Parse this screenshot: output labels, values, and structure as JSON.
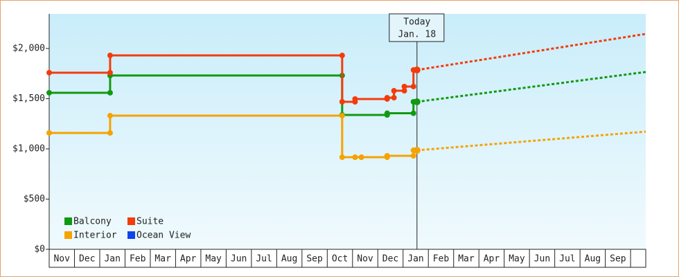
{
  "chart_data": {
    "type": "step-line",
    "xlim": [
      0,
      23.6
    ],
    "xticks": [
      {
        "value": 0,
        "label": "Nov"
      },
      {
        "value": 1,
        "label": "Dec"
      },
      {
        "value": 2,
        "label": "Jan"
      },
      {
        "value": 3,
        "label": "Feb"
      },
      {
        "value": 4,
        "label": "Mar"
      },
      {
        "value": 5,
        "label": "Apr"
      },
      {
        "value": 6,
        "label": "May"
      },
      {
        "value": 7,
        "label": "Jun"
      },
      {
        "value": 8,
        "label": "Jul"
      },
      {
        "value": 9,
        "label": "Aug"
      },
      {
        "value": 10,
        "label": "Sep"
      },
      {
        "value": 11,
        "label": "Oct"
      },
      {
        "value": 12,
        "label": "Nov"
      },
      {
        "value": 13,
        "label": "Dec"
      },
      {
        "value": 14,
        "label": "Jan"
      },
      {
        "value": 15,
        "label": "Feb"
      },
      {
        "value": 16,
        "label": "Mar"
      },
      {
        "value": 17,
        "label": "Apr"
      },
      {
        "value": 18,
        "label": "May"
      },
      {
        "value": 19,
        "label": "Jun"
      },
      {
        "value": 20,
        "label": "Jul"
      },
      {
        "value": 21,
        "label": "Aug"
      },
      {
        "value": 22,
        "label": "Sep"
      }
    ],
    "ylim": [
      0,
      2345
    ],
    "yticks": [
      {
        "value": 0,
        "label": "$0"
      },
      {
        "value": 500,
        "label": "$500"
      },
      {
        "value": 1000,
        "label": "$1,000"
      },
      {
        "value": 1500,
        "label": "$1,500"
      },
      {
        "value": 2000,
        "label": "$2,000"
      }
    ],
    "annotation": {
      "x": 14.55,
      "lines": [
        "Today",
        "Jan. 18"
      ]
    },
    "series": [
      {
        "name": "Balcony",
        "color": "#119911",
        "x": [
          0,
          2.41,
          11.59,
          13.37,
          14.41
        ],
        "values": [
          1559,
          1731,
          1338,
          1355,
          1469
        ],
        "projection": {
          "x": [
            14.55,
            23.6
          ],
          "values": [
            1469,
            1766
          ]
        }
      },
      {
        "name": "Suite",
        "color": "#f43b0c",
        "x": [
          0,
          2.41,
          11.59,
          12.1,
          13.37,
          13.64,
          14.05,
          14.41
        ],
        "values": [
          1759,
          1931,
          1469,
          1497,
          1510,
          1579,
          1621,
          1786
        ],
        "projection": {
          "x": [
            14.55,
            23.6
          ],
          "values": [
            1786,
            2145
          ]
        }
      },
      {
        "name": "Interior",
        "color": "#f5a300",
        "x": [
          0,
          2.41,
          11.59,
          12.1,
          12.35,
          13.37,
          14.41
        ],
        "values": [
          1159,
          1331,
          917,
          917,
          917,
          931,
          986
        ],
        "projection": {
          "x": [
            14.55,
            23.6
          ],
          "values": [
            986,
            1172
          ]
        }
      },
      {
        "name": "Ocean View",
        "color": "#1144ee",
        "x": [],
        "values": []
      }
    ]
  }
}
